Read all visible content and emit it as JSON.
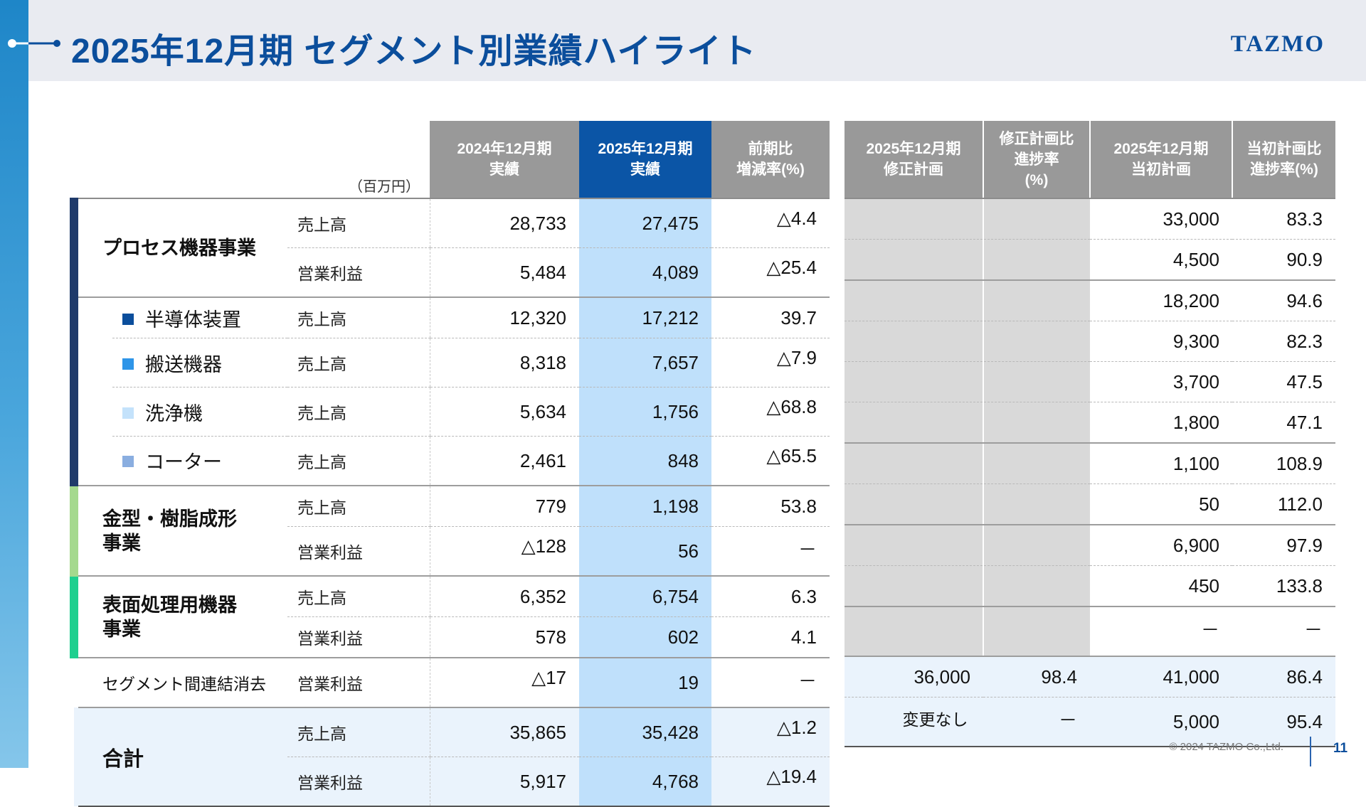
{
  "header": {
    "title": "2025年12月期 セグメント別業績ハイライト",
    "logo_text": "TAZMO",
    "title_icon": "line-dot-connector-icon"
  },
  "unit": "（百万円）",
  "left_columns": {
    "prev_actual": [
      "2024年12月期",
      "実績"
    ],
    "cur_actual": [
      "2025年12月期",
      "実績"
    ],
    "yoy": [
      "前期比",
      "増減率(%)"
    ]
  },
  "right_columns": {
    "revised_plan": [
      "2025年12月期",
      "修正計画"
    ],
    "revised_progress": [
      "修正計画比",
      "進捗率",
      "(%)"
    ],
    "initial_plan": [
      "2025年12月期",
      "当初計画"
    ],
    "initial_progress": [
      "当初計画比",
      "進捗率(%)"
    ]
  },
  "metrics": {
    "sales": "売上高",
    "op_profit": "営業利益"
  },
  "segments": {
    "process": {
      "name": "プロセス機器事業",
      "sales": {
        "prev": "28,733",
        "cur": "27,475",
        "yoy": "△4.4",
        "initial_plan": "33,000",
        "initial_progress": "83.3"
      },
      "op": {
        "prev": "5,484",
        "cur": "4,089",
        "yoy": "△25.4",
        "initial_plan": "4,500",
        "initial_progress": "90.9"
      },
      "subs": [
        {
          "name": "半導体装置",
          "color": "#0b4e9c",
          "prev": "12,320",
          "cur": "17,212",
          "yoy": "39.7",
          "initial_plan": "18,200",
          "initial_progress": "94.6"
        },
        {
          "name": "搬送機器",
          "color": "#2e95e8",
          "prev": "8,318",
          "cur": "7,657",
          "yoy": "△7.9",
          "initial_plan": "9,300",
          "initial_progress": "82.3"
        },
        {
          "name": "洗浄機",
          "color": "#c4e2fb",
          "prev": "5,634",
          "cur": "1,756",
          "yoy": "△68.8",
          "initial_plan": "3,700",
          "initial_progress": "47.5"
        },
        {
          "name": "コーター",
          "color": "#8aaee0",
          "prev": "2,461",
          "cur": "848",
          "yoy": "△65.5",
          "initial_plan": "1,800",
          "initial_progress": "47.1"
        }
      ]
    },
    "mold": {
      "name_line1": "金型・樹脂成形",
      "name_line2": "事業",
      "sales": {
        "prev": "779",
        "cur": "1,198",
        "yoy": "53.8",
        "initial_plan": "1,100",
        "initial_progress": "108.9"
      },
      "op": {
        "prev": "△128",
        "cur": "56",
        "yoy": "－",
        "initial_plan": "50",
        "initial_progress": "112.0"
      }
    },
    "surface": {
      "name_line1": "表面処理用機器",
      "name_line2": "事業",
      "sales": {
        "prev": "6,352",
        "cur": "6,754",
        "yoy": "6.3",
        "initial_plan": "6,900",
        "initial_progress": "97.9"
      },
      "op": {
        "prev": "578",
        "cur": "602",
        "yoy": "4.1",
        "initial_plan": "450",
        "initial_progress": "133.8"
      }
    },
    "elimination": {
      "name": "セグメント間連結消去",
      "op": {
        "prev": "△17",
        "cur": "19",
        "yoy": "－",
        "initial_plan": "－",
        "initial_progress": "－"
      }
    }
  },
  "total": {
    "name": "合計",
    "sales": {
      "prev": "35,865",
      "cur": "35,428",
      "yoy": "△1.2",
      "revised_plan": "36,000",
      "revised_progress": "98.4",
      "initial_plan": "41,000",
      "initial_progress": "86.4"
    },
    "op": {
      "prev": "5,917",
      "cur": "4,768",
      "yoy": "△19.4",
      "revised_plan": "変更なし",
      "revised_progress": "－",
      "initial_plan": "5,000",
      "initial_progress": "95.4"
    }
  },
  "footer": {
    "copyright": "© 2024 TAZMO Co.,Ltd.",
    "page_number": "11"
  },
  "colors": {
    "title_blue": "#0b4e9c",
    "highlight_header": "#0b55a6",
    "highlight_column": "#bfe0fb",
    "header_gray": "#999999",
    "process_bar": "#1f3a6a",
    "mold_bar": "#a5d98e",
    "surface_bar": "#1fcf8f"
  }
}
